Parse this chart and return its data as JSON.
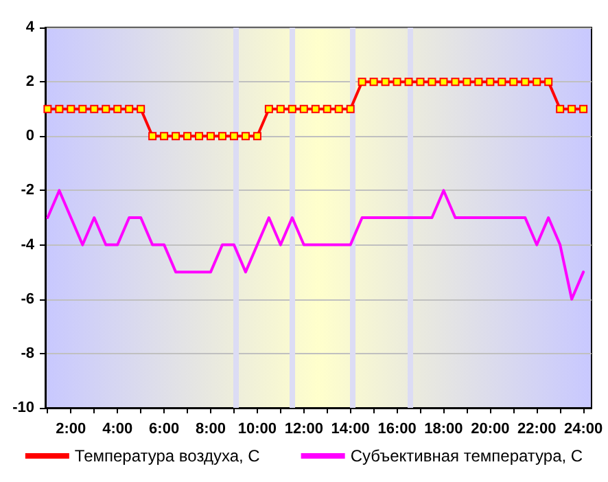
{
  "chart_data": {
    "type": "line",
    "x": [
      1,
      1.5,
      2,
      2.5,
      3,
      3.5,
      4,
      4.5,
      5,
      5.5,
      6,
      6.5,
      7,
      7.5,
      8,
      8.5,
      9,
      9.5,
      10,
      10.5,
      11,
      11.5,
      12,
      12.5,
      13,
      13.5,
      14,
      14.5,
      15,
      15.5,
      16,
      16.5,
      17,
      17.5,
      18,
      18.5,
      19,
      19.5,
      20,
      20.5,
      21,
      21.5,
      22,
      22.5,
      23,
      23.5,
      24
    ],
    "series": [
      {
        "name": "Температура воздуха, С",
        "color": "#ff0000",
        "marker": "square",
        "values": [
          1,
          1,
          1,
          1,
          1,
          1,
          1,
          1,
          1,
          0,
          0,
          0,
          0,
          0,
          0,
          0,
          0,
          0,
          0,
          1,
          1,
          1,
          1,
          1,
          1,
          1,
          1,
          2,
          2,
          2,
          2,
          2,
          2,
          2,
          2,
          2,
          2,
          2,
          2,
          2,
          2,
          2,
          2,
          2,
          1,
          1,
          1
        ]
      },
      {
        "name": "Субъективная температура, С",
        "color": "#ff00ff",
        "marker": "none",
        "values": [
          -3,
          -2,
          -3,
          -4,
          -3,
          -4,
          -4,
          -3,
          -3,
          -4,
          -4,
          -5,
          -5,
          -5,
          -5,
          -4,
          -4,
          -5,
          -4,
          -3,
          -4,
          -3,
          -4,
          -4,
          -4,
          -4,
          -4,
          -3,
          -3,
          -3,
          -3,
          -3,
          -3,
          -3,
          -2,
          -3,
          -3,
          -3,
          -3,
          -3,
          -3,
          -3,
          -4,
          -3,
          -4,
          -6,
          -5
        ]
      }
    ],
    "xlim": [
      0.9,
      24.35
    ],
    "xticks": [
      {
        "value": 1,
        "label": null
      },
      {
        "value": 2,
        "label": "2:00"
      },
      {
        "value": 3,
        "label": null
      },
      {
        "value": 4,
        "label": "4:00"
      },
      {
        "value": 5,
        "label": null
      },
      {
        "value": 6,
        "label": "6:00"
      },
      {
        "value": 7,
        "label": null
      },
      {
        "value": 8,
        "label": "8:00"
      },
      {
        "value": 9,
        "label": null
      },
      {
        "value": 10,
        "label": "10:00"
      },
      {
        "value": 11,
        "label": null
      },
      {
        "value": 12,
        "label": "12:00"
      },
      {
        "value": 13,
        "label": null
      },
      {
        "value": 14,
        "label": "14:00"
      },
      {
        "value": 15,
        "label": null
      },
      {
        "value": 16,
        "label": "16:00"
      },
      {
        "value": 17,
        "label": null
      },
      {
        "value": 18,
        "label": "18:00"
      },
      {
        "value": 19,
        "label": null
      },
      {
        "value": 20,
        "label": "20:00"
      },
      {
        "value": 21,
        "label": null
      },
      {
        "value": 22,
        "label": "22:00"
      },
      {
        "value": 23,
        "label": null
      },
      {
        "value": 24,
        "label": "24:00"
      }
    ],
    "ylim": [
      -10,
      4
    ],
    "yticks": [
      -10,
      -8,
      -6,
      -4,
      -2,
      0,
      2,
      4
    ],
    "grid": "y",
    "legend": "bottom",
    "line_style": "solid",
    "ref_lines": [
      {
        "axis": "x",
        "value": 9.05,
        "color": "#dcdcf4"
      },
      {
        "axis": "x",
        "value": 11.5,
        "color": "#dcdcf4"
      },
      {
        "axis": "x",
        "value": 14.1,
        "color": "#dcdcf4"
      },
      {
        "axis": "x",
        "value": 16.55,
        "color": "#dcdcf4"
      }
    ]
  }
}
